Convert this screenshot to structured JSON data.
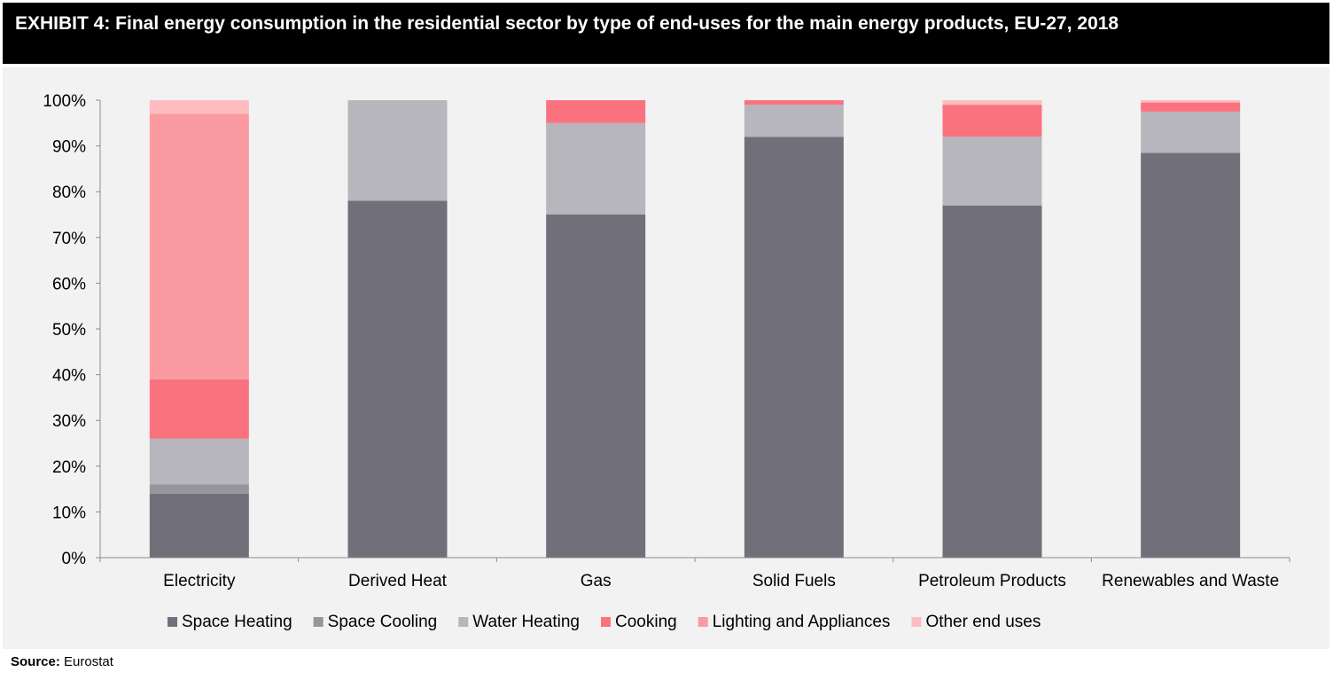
{
  "header": {
    "title": "EXHIBIT 4: Final energy consumption in the residential sector by type of end-uses for the main energy products, EU-27, 2018"
  },
  "footer": {
    "source_label": "Source:",
    "source_value": "Eurostat"
  },
  "colors": {
    "Space Heating": "#71707a",
    "Space Cooling": "#96959d",
    "Water Heating": "#b7b6bc",
    "Cooking": "#fb727f",
    "Lighting and Appliances": "#fc9aa1",
    "Other end uses": "#fcbcc0"
  },
  "chart_data": {
    "type": "bar",
    "stacked": true,
    "title": "",
    "xlabel": "",
    "ylabel": "",
    "ylim": [
      0,
      100
    ],
    "y_ticks": [
      "0%",
      "10%",
      "20%",
      "30%",
      "40%",
      "50%",
      "60%",
      "70%",
      "80%",
      "90%",
      "100%"
    ],
    "categories": [
      "Electricity",
      "Derived Heat",
      "Gas",
      "Solid Fuels",
      "Petroleum Products",
      "Renewables and Waste"
    ],
    "series": [
      {
        "name": "Space Heating",
        "values": [
          14,
          78,
          75,
          92,
          77,
          88.5
        ]
      },
      {
        "name": "Space Cooling",
        "values": [
          2,
          0,
          0,
          0,
          0,
          0
        ]
      },
      {
        "name": "Water Heating",
        "values": [
          10,
          22,
          20,
          7,
          15,
          9
        ]
      },
      {
        "name": "Cooking",
        "values": [
          13,
          0,
          5,
          1,
          7,
          2
        ]
      },
      {
        "name": "Lighting and Appliances",
        "values": [
          58,
          0,
          0,
          0,
          0,
          0
        ]
      },
      {
        "name": "Other end uses",
        "values": [
          3,
          0,
          0,
          0,
          1,
          0.5
        ]
      }
    ],
    "legend_position": "bottom",
    "grid": false
  }
}
